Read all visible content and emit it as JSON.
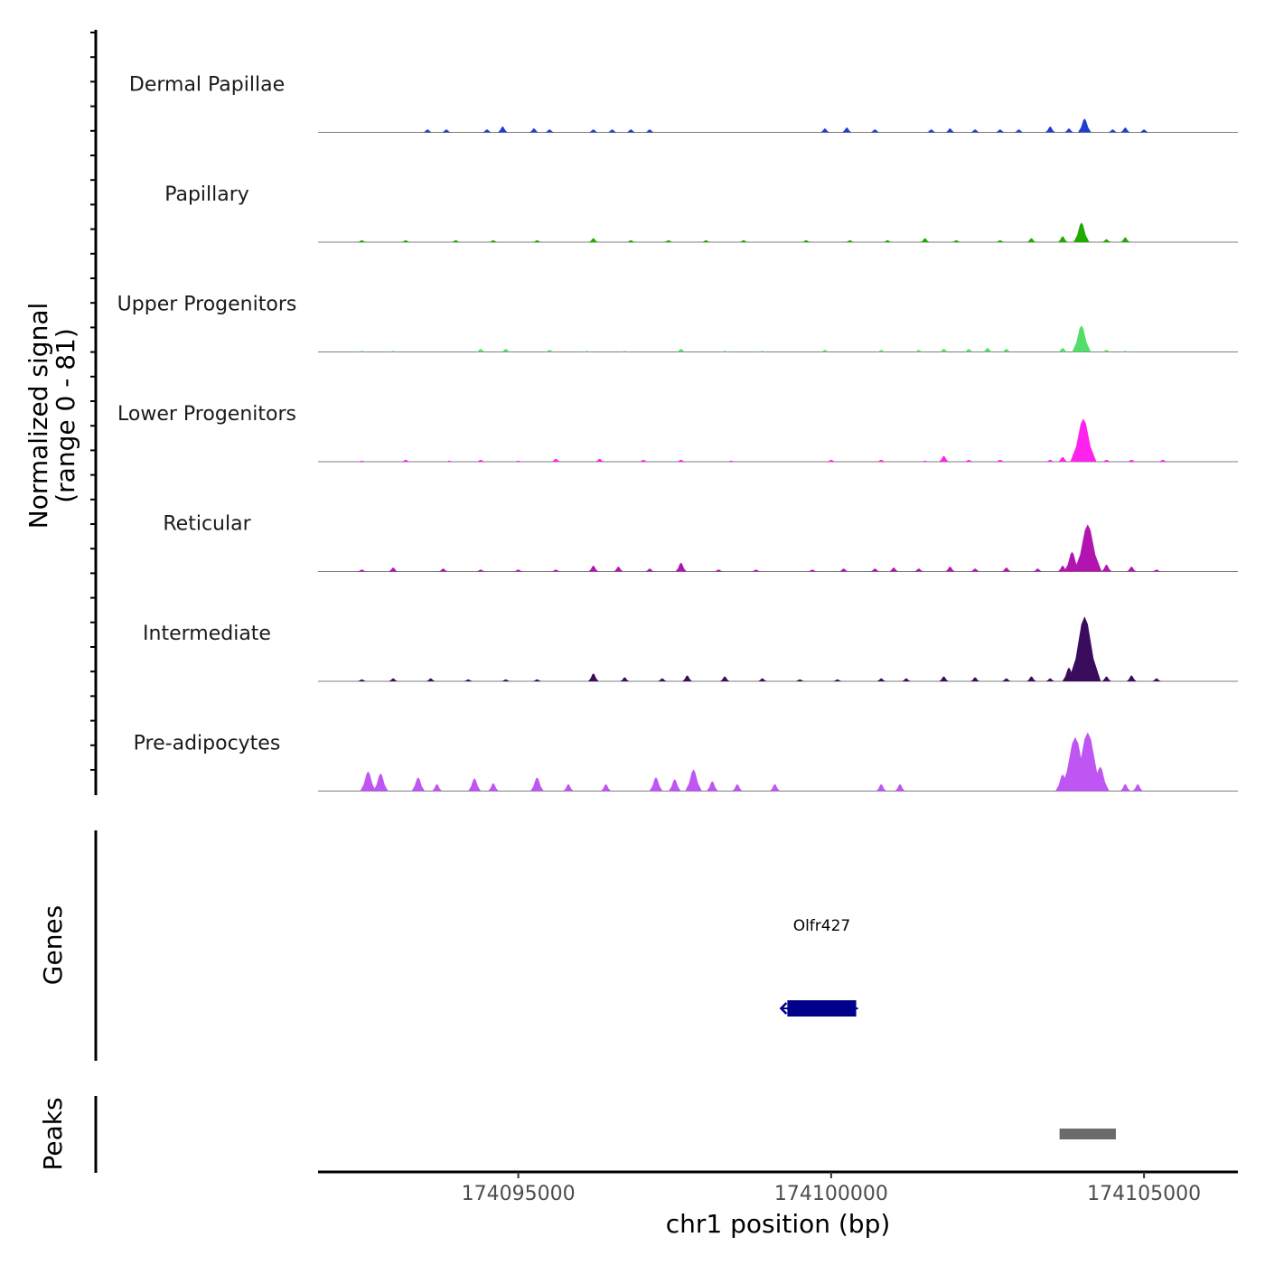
{
  "chart_data": {
    "type": "area",
    "title": "",
    "xlabel": "chr1 position (bp)",
    "ylabel": "Normalized signal",
    "ylabel_sub": "(range 0 - 81)",
    "ylim": [
      0,
      81
    ],
    "xlim": [
      174091800,
      174106500
    ],
    "xticks": [
      174095000,
      174100000,
      174105000
    ],
    "xtick_labels": [
      "174095000",
      "174100000",
      "174105000"
    ],
    "tracks": [
      {
        "name": "Dermal Papillae",
        "color": "#1f3fcf",
        "peaks": [
          [
            174093550,
            3
          ],
          [
            174093850,
            3
          ],
          [
            174094500,
            3
          ],
          [
            174094750,
            6
          ],
          [
            174095250,
            4
          ],
          [
            174095500,
            3
          ],
          [
            174096200,
            3
          ],
          [
            174096500,
            3
          ],
          [
            174096800,
            3
          ],
          [
            174097100,
            3
          ],
          [
            174099900,
            4
          ],
          [
            174100250,
            5
          ],
          [
            174100700,
            3
          ],
          [
            174101600,
            3
          ],
          [
            174101900,
            4
          ],
          [
            174102300,
            3
          ],
          [
            174102700,
            3
          ],
          [
            174103000,
            3
          ],
          [
            174103500,
            6
          ],
          [
            174103800,
            4
          ],
          [
            174104050,
            14
          ],
          [
            174104500,
            3
          ],
          [
            174104700,
            5
          ],
          [
            174105000,
            3
          ]
        ]
      },
      {
        "name": "Papillary",
        "color": "#22aa00",
        "peaks": [
          [
            174092500,
            2
          ],
          [
            174093200,
            2
          ],
          [
            174094000,
            2
          ],
          [
            174094600,
            2
          ],
          [
            174095300,
            2
          ],
          [
            174096200,
            4
          ],
          [
            174096800,
            2
          ],
          [
            174097400,
            2
          ],
          [
            174098000,
            2
          ],
          [
            174098600,
            2
          ],
          [
            174099600,
            2
          ],
          [
            174100300,
            2
          ],
          [
            174100900,
            2
          ],
          [
            174101500,
            4
          ],
          [
            174102000,
            2
          ],
          [
            174102700,
            2
          ],
          [
            174103200,
            4
          ],
          [
            174103700,
            6
          ],
          [
            174104000,
            20
          ],
          [
            174104400,
            3
          ],
          [
            174104700,
            5
          ]
        ]
      },
      {
        "name": "Upper Progenitors",
        "color": "#55dd6a",
        "peaks": [
          [
            174092500,
            1
          ],
          [
            174093000,
            1
          ],
          [
            174094400,
            3
          ],
          [
            174094800,
            3
          ],
          [
            174095500,
            2
          ],
          [
            174096100,
            1
          ],
          [
            174096700,
            1
          ],
          [
            174097600,
            3
          ],
          [
            174098300,
            1
          ],
          [
            174098900,
            1
          ],
          [
            174099900,
            2
          ],
          [
            174100800,
            2
          ],
          [
            174101400,
            2
          ],
          [
            174101800,
            3
          ],
          [
            174102200,
            3
          ],
          [
            174102500,
            4
          ],
          [
            174102800,
            3
          ],
          [
            174103700,
            4
          ],
          [
            174104000,
            27
          ],
          [
            174104400,
            2
          ],
          [
            174104700,
            1
          ]
        ]
      },
      {
        "name": "Lower Progenitors",
        "color": "#ff22ee",
        "peaks": [
          [
            174092500,
            1
          ],
          [
            174093200,
            2
          ],
          [
            174093900,
            1
          ],
          [
            174094400,
            2
          ],
          [
            174095000,
            1
          ],
          [
            174095600,
            3
          ],
          [
            174096300,
            3
          ],
          [
            174097000,
            2
          ],
          [
            174097600,
            2
          ],
          [
            174098400,
            1
          ],
          [
            174100000,
            2
          ],
          [
            174100800,
            2
          ],
          [
            174101500,
            1
          ],
          [
            174101800,
            6
          ],
          [
            174102200,
            2
          ],
          [
            174102700,
            2
          ],
          [
            174103500,
            2
          ],
          [
            174103700,
            5
          ],
          [
            174104030,
            44
          ],
          [
            174104400,
            2
          ],
          [
            174104800,
            2
          ],
          [
            174105300,
            2
          ]
        ]
      },
      {
        "name": "Reticular",
        "color": "#b214b0",
        "peaks": [
          [
            174092500,
            2
          ],
          [
            174093000,
            4
          ],
          [
            174093800,
            3
          ],
          [
            174094400,
            2
          ],
          [
            174095000,
            2
          ],
          [
            174095600,
            2
          ],
          [
            174096200,
            6
          ],
          [
            174096600,
            5
          ],
          [
            174097100,
            3
          ],
          [
            174097600,
            9
          ],
          [
            174098200,
            2
          ],
          [
            174098800,
            2
          ],
          [
            174099700,
            2
          ],
          [
            174100200,
            3
          ],
          [
            174100700,
            3
          ],
          [
            174101000,
            4
          ],
          [
            174101400,
            3
          ],
          [
            174101900,
            5
          ],
          [
            174102300,
            3
          ],
          [
            174102800,
            4
          ],
          [
            174103300,
            3
          ],
          [
            174103700,
            6
          ],
          [
            174103850,
            20
          ],
          [
            174104100,
            48
          ],
          [
            174104400,
            7
          ],
          [
            174104800,
            5
          ],
          [
            174105200,
            2
          ]
        ]
      },
      {
        "name": "Intermediate",
        "color": "#3a0c5e",
        "peaks": [
          [
            174092500,
            2
          ],
          [
            174093000,
            3
          ],
          [
            174093600,
            3
          ],
          [
            174094200,
            2
          ],
          [
            174094800,
            2
          ],
          [
            174095300,
            2
          ],
          [
            174096200,
            8
          ],
          [
            174096700,
            4
          ],
          [
            174097300,
            3
          ],
          [
            174097700,
            6
          ],
          [
            174098300,
            5
          ],
          [
            174098900,
            3
          ],
          [
            174099500,
            2
          ],
          [
            174100100,
            2
          ],
          [
            174100800,
            3
          ],
          [
            174101200,
            3
          ],
          [
            174101800,
            5
          ],
          [
            174102300,
            4
          ],
          [
            174102800,
            3
          ],
          [
            174103200,
            5
          ],
          [
            174103500,
            3
          ],
          [
            174103800,
            14
          ],
          [
            174104050,
            66
          ],
          [
            174104400,
            5
          ],
          [
            174104800,
            6
          ],
          [
            174105200,
            3
          ]
        ]
      },
      {
        "name": "Pre-adipocytes",
        "color": "#bf55f2",
        "peaks": [
          [
            174092600,
            20
          ],
          [
            174092800,
            18
          ],
          [
            174093400,
            14
          ],
          [
            174093700,
            7
          ],
          [
            174094300,
            13
          ],
          [
            174094600,
            8
          ],
          [
            174095300,
            14
          ],
          [
            174095800,
            7
          ],
          [
            174096400,
            7
          ],
          [
            174097200,
            14
          ],
          [
            174097500,
            12
          ],
          [
            174097800,
            22
          ],
          [
            174098100,
            10
          ],
          [
            174098500,
            7
          ],
          [
            174099100,
            7
          ],
          [
            174100800,
            7
          ],
          [
            174101100,
            7
          ],
          [
            174103700,
            17
          ],
          [
            174103900,
            55
          ],
          [
            174104100,
            60
          ],
          [
            174104300,
            25
          ],
          [
            174104700,
            7
          ],
          [
            174104900,
            7
          ]
        ]
      }
    ],
    "genes": [
      {
        "name": "Olfr427",
        "start": 174099300,
        "end": 174100400,
        "strand": "-",
        "color": "#00008b"
      }
    ],
    "peaks_track": [
      {
        "start": 174103650,
        "end": 174104550,
        "color": "#6b6b6b"
      }
    ],
    "panels": {
      "genes": "Genes",
      "peaks": "Peaks"
    }
  }
}
